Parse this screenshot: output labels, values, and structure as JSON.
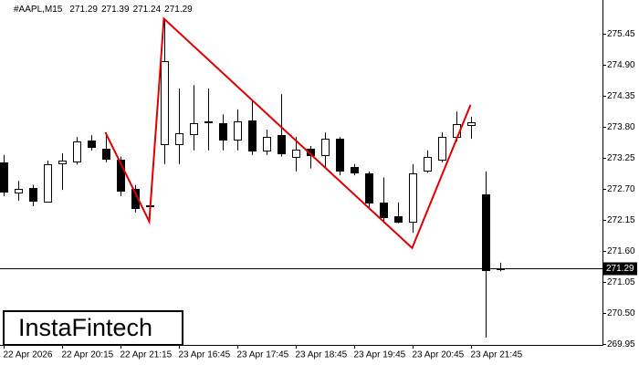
{
  "chart_data": {
    "type": "candlestick",
    "title": "#AAPL,M15",
    "header_values": [
      271.29,
      271.39,
      271.24,
      271.29
    ],
    "categories": [
      "22 Apr 2026",
      null,
      null,
      null,
      "22 Apr 20:15",
      null,
      null,
      null,
      "22 Apr 21:15",
      null,
      null,
      null,
      "23 Apr 16:45",
      null,
      null,
      null,
      "23 Apr 17:45",
      null,
      null,
      null,
      "23 Apr 18:45",
      null,
      null,
      null,
      "23 Apr 19:45",
      null,
      null,
      null,
      "23 Apr 20:45",
      null,
      null,
      null,
      "23 Apr 21:45",
      null,
      null
    ],
    "open": [
      273.17,
      272.63,
      272.72,
      272.47,
      273.15,
      273.18,
      273.56,
      273.41,
      273.22,
      272.7,
      272.41,
      273.49,
      273.49,
      273.67,
      273.89,
      273.86,
      273.57,
      273.91,
      273.38,
      273.65,
      273.27,
      273.41,
      273.3,
      273.59,
      273.09,
      272.98,
      272.46,
      272.22,
      272.13,
      273.02,
      273.22,
      273.62,
      273.83,
      272.6,
      271.29
    ],
    "high": [
      273.3,
      272.84,
      272.77,
      273.2,
      273.33,
      273.62,
      273.65,
      273.7,
      273.27,
      272.77,
      272.46,
      275.72,
      274.48,
      274.54,
      274.48,
      274.02,
      274.11,
      274.27,
      273.75,
      274.38,
      273.62,
      273.46,
      273.7,
      273.62,
      273.14,
      273.01,
      272.9,
      272.46,
      273.14,
      273.38,
      273.7,
      274.07,
      273.98,
      273.01,
      271.39
    ],
    "low": [
      272.57,
      272.49,
      272.39,
      272.46,
      272.68,
      273.13,
      273.38,
      273.17,
      272.57,
      272.28,
      272.36,
      273.14,
      273.14,
      273.38,
      273.38,
      273.38,
      273.38,
      273.3,
      273.3,
      273.27,
      273.01,
      273.06,
      273.06,
      272.94,
      272.94,
      272.36,
      272.09,
      272.09,
      271.92,
      272.98,
      273.17,
      273.54,
      273.59,
      270.06,
      271.24
    ],
    "close": [
      272.65,
      272.7,
      272.49,
      273.14,
      273.2,
      273.54,
      273.44,
      273.23,
      272.67,
      272.36,
      272.41,
      274.96,
      273.69,
      273.86,
      273.9,
      273.57,
      273.9,
      273.38,
      273.62,
      273.33,
      273.4,
      273.3,
      273.59,
      273.02,
      272.99,
      272.46,
      272.2,
      272.12,
      272.98,
      273.26,
      273.62,
      273.85,
      273.88,
      271.26,
      271.29
    ],
    "bull_color": "#ffffff",
    "bear_color": "#000000",
    "outline_color": "#000000",
    "current_price": 271.29,
    "pattern": {
      "color": "#e00000",
      "x": [
        7,
        10,
        11,
        28,
        32
      ],
      "values": [
        273.7,
        272.12,
        275.72,
        271.65,
        274.19
      ]
    },
    "ylim": [
      269.93,
      276.05
    ],
    "yticks": [
      275.45,
      {
        "value": 274.9,
        "label": "274.90"
      },
      274.35,
      {
        "value": 273.8,
        "label": "273.80"
      },
      273.25,
      {
        "value": 272.7,
        "label": "272.70"
      },
      272.15,
      {
        "value": 271.6,
        "label": "271.60"
      },
      271.05,
      {
        "value": 270.5,
        "label": "270.50"
      },
      269.95
    ],
    "grid": false
  },
  "watermark": "InstaFintech"
}
